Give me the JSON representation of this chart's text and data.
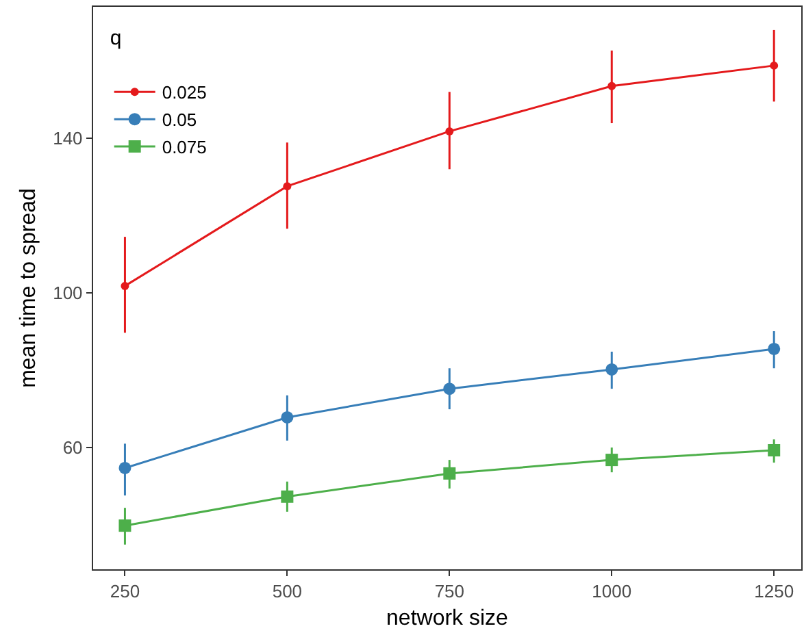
{
  "chart_data": {
    "type": "line",
    "xlabel": "network size",
    "ylabel": "mean time to spread",
    "legend_title": "q",
    "legend": "top left",
    "grid": false,
    "x": [
      250,
      500,
      750,
      1000,
      1250
    ],
    "xlim": [
      201,
      1292
    ],
    "xticks": [
      250,
      500,
      750,
      1000,
      1250
    ],
    "ylim": [
      28.5,
      174
    ],
    "yticks": [
      60,
      100,
      140
    ],
    "series": [
      {
        "name": "0.025",
        "color": "#e41a1c",
        "marker": "circle",
        "values": [
          101.8,
          127.6,
          141.8,
          153.5,
          158.8
        ],
        "errors": [
          [
            89.7,
            114.5
          ],
          [
            116.6,
            138.9
          ],
          [
            132,
            152
          ],
          [
            143.9,
            162.7
          ],
          [
            149.5,
            168
          ]
        ]
      },
      {
        "name": "0.05",
        "color": "#377eb8",
        "marker": "circle",
        "values": [
          54.7,
          67.8,
          75.2,
          80.2,
          85.5
        ],
        "errors": [
          [
            47.6,
            61
          ],
          [
            61.8,
            73.5
          ],
          [
            69.9,
            80.5
          ],
          [
            75.2,
            84.8
          ],
          [
            80.5,
            90.1
          ]
        ]
      },
      {
        "name": "0.075",
        "color": "#4daf4a",
        "marker": "square",
        "values": [
          39.8,
          47.3,
          53.3,
          56.8,
          59.3
        ],
        "errors": [
          [
            34.9,
            44.4
          ],
          [
            43.4,
            51.2
          ],
          [
            49.4,
            56.8
          ],
          [
            53.6,
            60
          ],
          [
            56.1,
            62.1
          ]
        ]
      }
    ]
  }
}
